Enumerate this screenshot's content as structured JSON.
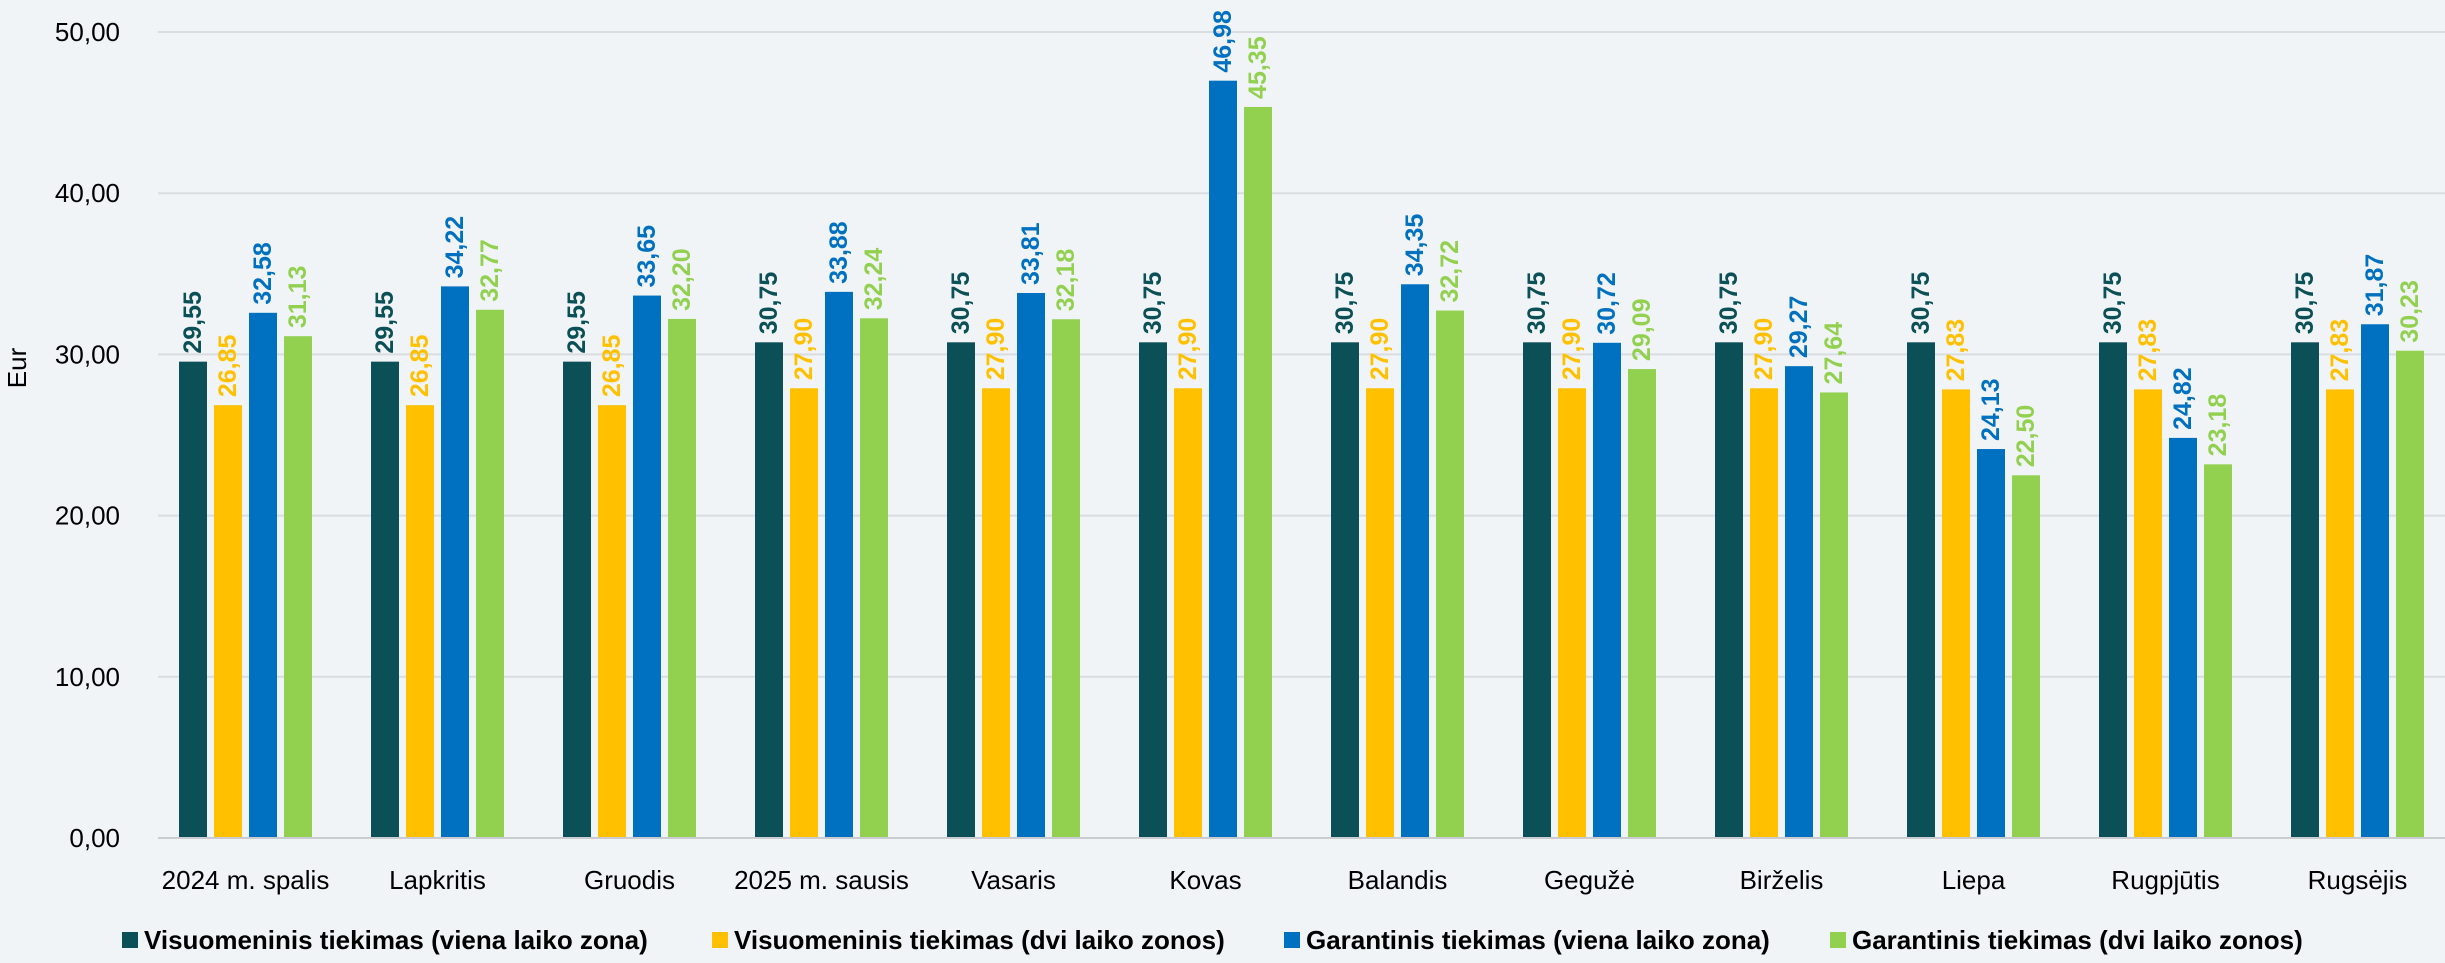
{
  "chart_data": {
    "type": "bar",
    "title": "",
    "xlabel": "",
    "ylabel": "Eur",
    "ylim": [
      0,
      50
    ],
    "yticks": [
      "0,00",
      "10,00",
      "20,00",
      "30,00",
      "40,00",
      "50,00"
    ],
    "grid": true,
    "legend_position": "bottom",
    "categories": [
      "2024 m. spalis",
      "Lapkritis",
      "Gruodis",
      "2025 m. sausis",
      "Vasaris",
      "Kovas",
      "Balandis",
      "Gegužė",
      "Birželis",
      "Liepa",
      "Rugpjūtis",
      "Rugsėjis"
    ],
    "series": [
      {
        "name": "Visuomeninis tiekimas (viena laiko zona)",
        "color": "#0b4f57",
        "values": [
          29.55,
          29.55,
          29.55,
          30.75,
          30.75,
          30.75,
          30.75,
          30.75,
          30.75,
          30.75,
          30.75,
          30.75
        ],
        "labels": [
          "29,55",
          "29,55",
          "29,55",
          "30,75",
          "30,75",
          "30,75",
          "30,75",
          "30,75",
          "30,75",
          "30,75",
          "30,75",
          "30,75"
        ]
      },
      {
        "name": "Visuomeninis tiekimas (dvi laiko zonos)",
        "color": "#ffc000",
        "values": [
          26.85,
          26.85,
          26.85,
          27.9,
          27.9,
          27.9,
          27.9,
          27.9,
          27.9,
          27.83,
          27.83,
          27.83
        ],
        "labels": [
          "26,85",
          "26,85",
          "26,85",
          "27,90",
          "27,90",
          "27,90",
          "27,90",
          "27,90",
          "27,90",
          "27,83",
          "27,83",
          "27,83"
        ]
      },
      {
        "name": "Garantinis tiekimas (viena laiko zona)",
        "color": "#0070c0",
        "values": [
          32.58,
          34.22,
          33.65,
          33.88,
          33.81,
          46.98,
          34.35,
          30.72,
          29.27,
          24.13,
          24.82,
          31.87
        ],
        "labels": [
          "32,58",
          "34,22",
          "33,65",
          "33,88",
          "33,81",
          "46,98",
          "34,35",
          "30,72",
          "29,27",
          "24,13",
          "24,82",
          "31,87"
        ]
      },
      {
        "name": "Garantinis tiekimas (dvi laiko zonos)",
        "color": "#92d050",
        "values": [
          31.13,
          32.77,
          32.2,
          32.24,
          32.18,
          45.35,
          32.72,
          29.09,
          27.64,
          22.5,
          23.18,
          30.23
        ],
        "labels": [
          "31,13",
          "32,77",
          "32,20",
          "32,24",
          "32,18",
          "45,35",
          "32,72",
          "29,09",
          "27,64",
          "22,50",
          "23,18",
          "30,23"
        ]
      }
    ]
  }
}
